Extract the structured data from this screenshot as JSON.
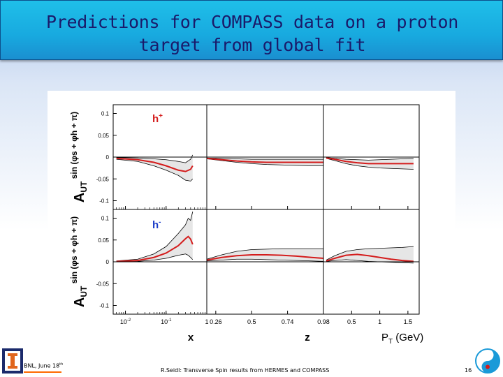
{
  "slide": {
    "title_line1": "Predictions for COMPASS data on a proton",
    "title_line2": "target from global fit",
    "footer_left": "BNL, June 18",
    "footer_left_sup": "th",
    "footer_center": "R.Seidl: Transverse Spin results from HERMES and COMPASS",
    "page_number": "16"
  },
  "colors": {
    "central": "#d41c1c",
    "band_fill": "#e6e6e6",
    "band_edge": "#000000",
    "zero_line": "#000000"
  },
  "chart_data": {
    "type": "line",
    "rows": [
      {
        "hadron": "h",
        "charge": "+",
        "ylabel_main": "A",
        "ylabel_sub": "UT",
        "ylabel_sin": "sin (φs + φh + π)",
        "yticks": [
          "0.1",
          "0.05",
          "0",
          "-0.05",
          "-0.1"
        ],
        "ytick_values": [
          0.1,
          0.05,
          0,
          -0.05,
          -0.1
        ],
        "ylim": [
          -0.12,
          0.12
        ]
      },
      {
        "hadron": "h",
        "charge": "-",
        "ylabel_main": "A",
        "ylabel_sub": "UT",
        "ylabel_sin": "sin (φs + φh + π)",
        "yticks": [
          "0.1",
          "0.05",
          "0",
          "-0.05",
          "-0.1"
        ],
        "ytick_values": [
          0.1,
          0.05,
          0,
          -0.05,
          -0.1
        ],
        "ylim": [
          -0.12,
          0.12
        ]
      }
    ],
    "columns": [
      {
        "xlabel": "x",
        "xlim": [
          0.005,
          1
        ],
        "log": true,
        "ticks": [
          {
            "label": "10",
            "sup": "-2",
            "value": 0.01
          },
          {
            "label": "10",
            "sup": "-1",
            "value": 0.1
          },
          {
            "label": "1",
            "sup": "",
            "value": 1
          }
        ]
      },
      {
        "xlabel": "z",
        "xlim": [
          0.2,
          0.98
        ],
        "log": false,
        "ticks": [
          {
            "label": "0.26",
            "sup": "",
            "value": 0.26
          },
          {
            "label": "0.5",
            "sup": "",
            "value": 0.5
          },
          {
            "label": "0.74",
            "sup": "",
            "value": 0.74
          },
          {
            "label": "0.98",
            "sup": "",
            "value": 0.98
          }
        ]
      },
      {
        "xlabel": "P",
        "xlabel_sub": "T",
        "xlabel_unit": " (GeV)",
        "xlim": [
          0,
          1.7
        ],
        "log": false,
        "ticks": [
          {
            "label": "0.5",
            "sup": "",
            "value": 0.5
          },
          {
            "label": "1",
            "sup": "",
            "value": 1
          },
          {
            "label": "1.5",
            "sup": "",
            "value": 1.5
          }
        ]
      }
    ],
    "panels": [
      {
        "row": 0,
        "col": 0,
        "x": [
          0.006,
          0.02,
          0.05,
          0.1,
          0.2,
          0.3,
          0.4,
          0.45
        ],
        "central": [
          -0.003,
          -0.006,
          -0.012,
          -0.02,
          -0.03,
          -0.033,
          -0.028,
          -0.02
        ],
        "upper": [
          -0.001,
          -0.002,
          -0.004,
          -0.006,
          -0.01,
          -0.013,
          -0.005,
          0.005
        ],
        "lower": [
          -0.005,
          -0.01,
          -0.02,
          -0.03,
          -0.042,
          -0.053,
          -0.055,
          -0.05
        ]
      },
      {
        "row": 0,
        "col": 1,
        "x": [
          0.2,
          0.3,
          0.4,
          0.5,
          0.6,
          0.7,
          0.8,
          0.9,
          0.98
        ],
        "central": [
          -0.003,
          -0.006,
          -0.009,
          -0.011,
          -0.012,
          -0.012,
          -0.012,
          -0.012,
          -0.012
        ],
        "upper": [
          -0.002,
          -0.003,
          -0.004,
          -0.005,
          -0.005,
          -0.005,
          -0.005,
          -0.005,
          -0.005
        ],
        "lower": [
          -0.004,
          -0.008,
          -0.012,
          -0.015,
          -0.017,
          -0.018,
          -0.019,
          -0.02,
          -0.02
        ]
      },
      {
        "row": 0,
        "col": 2,
        "x": [
          0.05,
          0.2,
          0.4,
          0.6,
          0.8,
          1.0,
          1.2,
          1.4,
          1.6
        ],
        "central": [
          -0.002,
          -0.005,
          -0.01,
          -0.013,
          -0.015,
          -0.015,
          -0.015,
          -0.015,
          -0.015
        ],
        "upper": [
          -0.001,
          -0.003,
          -0.005,
          -0.006,
          -0.007,
          -0.006,
          -0.005,
          -0.004,
          -0.003
        ],
        "lower": [
          -0.003,
          -0.008,
          -0.015,
          -0.02,
          -0.023,
          -0.025,
          -0.026,
          -0.027,
          -0.028
        ]
      },
      {
        "row": 1,
        "col": 0,
        "x": [
          0.006,
          0.02,
          0.05,
          0.1,
          0.2,
          0.3,
          0.35,
          0.4,
          0.45
        ],
        "central": [
          0.001,
          0.003,
          0.01,
          0.02,
          0.037,
          0.053,
          0.058,
          0.052,
          0.04
        ],
        "upper": [
          0.002,
          0.006,
          0.018,
          0.035,
          0.065,
          0.085,
          0.1,
          0.095,
          0.115
        ],
        "lower": [
          0.0,
          0.001,
          0.004,
          0.008,
          0.015,
          0.018,
          0.015,
          0.01,
          0.005
        ]
      },
      {
        "row": 1,
        "col": 1,
        "x": [
          0.2,
          0.3,
          0.4,
          0.5,
          0.6,
          0.7,
          0.8,
          0.9,
          0.98
        ],
        "central": [
          0.004,
          0.01,
          0.014,
          0.016,
          0.016,
          0.015,
          0.013,
          0.01,
          0.008
        ],
        "upper": [
          0.006,
          0.016,
          0.024,
          0.028,
          0.029,
          0.03,
          0.03,
          0.03,
          0.03
        ],
        "lower": [
          0.002,
          0.004,
          0.006,
          0.006,
          0.005,
          0.004,
          0.003,
          0.002,
          0.001
        ]
      },
      {
        "row": 1,
        "col": 2,
        "x": [
          0.05,
          0.2,
          0.4,
          0.6,
          0.8,
          1.0,
          1.2,
          1.4,
          1.6
        ],
        "central": [
          0.002,
          0.008,
          0.015,
          0.017,
          0.014,
          0.01,
          0.006,
          0.003,
          0.001
        ],
        "upper": [
          0.004,
          0.014,
          0.024,
          0.028,
          0.03,
          0.031,
          0.032,
          0.033,
          0.035
        ],
        "lower": [
          0.001,
          0.003,
          0.005,
          0.003,
          0.001,
          0.0,
          -0.001,
          -0.002,
          -0.003
        ]
      }
    ]
  }
}
